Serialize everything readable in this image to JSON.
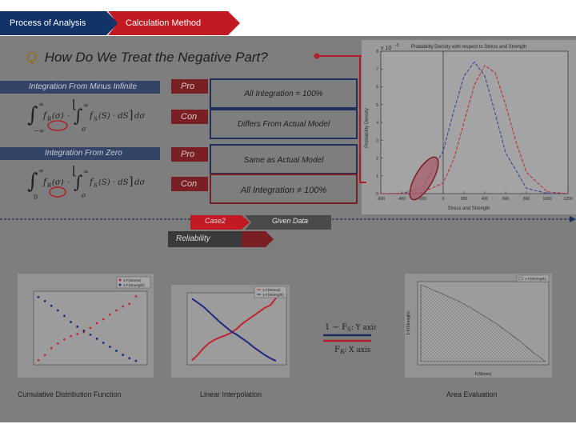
{
  "header": {
    "tab_process": "Process of Analysis",
    "tab_method": "Calculation Method"
  },
  "question": {
    "marker": "Q.",
    "text": "How Do We Treat the Negative Part?"
  },
  "methods": [
    {
      "label": "Integration From Minus Infinite",
      "pro": "Pro",
      "pro_text": "All Integration = 100%",
      "con": "Con",
      "con_text": "Differs From Actual Model"
    },
    {
      "label": "Integration From Zero",
      "pro": "Pro",
      "pro_text": "Same as Actual Model",
      "con": "Con",
      "con_text": "All Integration ≠ 100%"
    }
  ],
  "formulas": {
    "upper_limit": "∞",
    "lower_limit_1": "−∞",
    "lower_limit_2": "0",
    "inner_lower": "σ",
    "fr": "f",
    "fr_sub": "R",
    "fs": "f",
    "fs_sub": "S",
    "arg_sigma": "(σ)",
    "inner_body": "(S) · dS",
    "dsigma": "dσ",
    "dot": "·"
  },
  "plot": {
    "title": "Probability Density with respect to Stress and Strength",
    "xlabel": "Stress and Strength",
    "ylabel": "Probability Density",
    "exponent": "x 10",
    "exponent_power": "-3",
    "ytick_labels": [
      "0",
      "1",
      "2",
      "3",
      "4",
      "5",
      "6",
      "7",
      "8"
    ],
    "xtick_labels": [
      "-600",
      "-400",
      "-200",
      "0",
      "200",
      "400",
      "600",
      "800",
      "1000",
      "1200"
    ],
    "stress_color": "#2e3f9e",
    "strength_color": "#c0252b"
  },
  "process": {
    "case_label": "Case2",
    "given_label": "Given Data",
    "reliability_label": "Reliability"
  },
  "charts": {
    "cdf_caption": "Cumulative Distribution Function",
    "interp_caption": "Linear Interpolation",
    "area_caption": "Area Evaluation",
    "legend_a": "1-F(Stress)",
    "legend_b": "1-F(Strength)",
    "legend_area": "1-F(Strength)",
    "area_ylabel": "1-F(Strength)",
    "area_xlabel": "F(Stress)",
    "legend_1_fs": "1 − F",
    "legend_1_fs_sub": "S",
    "legend_1_fs_suffix": ": Y axis",
    "legend_fr": "F",
    "legend_fr_sub": "R",
    "legend_fr_suffix": ": X axis"
  },
  "chart_data": [
    {
      "type": "line",
      "title": "Probability Density with respect to Stress and Strength",
      "xlabel": "Stress and Strength",
      "ylabel": "Probability Density",
      "xlim": [
        -600,
        1200
      ],
      "ylim": [
        0,
        8
      ],
      "y_multiplier": "x 10^-3",
      "series": [
        {
          "color": "#2e3f9e",
          "style": "dashed",
          "x": [
            -600,
            -400,
            -200,
            0,
            100,
            200,
            300,
            400,
            500,
            600,
            800,
            1000,
            1200
          ],
          "y": [
            0,
            0.01,
            0.3,
            2.4,
            4.6,
            6.6,
            7.4,
            6.6,
            4.5,
            2.3,
            0.3,
            0.01,
            0
          ]
        },
        {
          "color": "#c0252b",
          "style": "dashed",
          "x": [
            -600,
            -400,
            -200,
            0,
            100,
            200,
            300,
            400,
            500,
            600,
            700,
            800,
            1000,
            1200
          ],
          "y": [
            0,
            0,
            0.05,
            0.6,
            1.9,
            4.0,
            6.1,
            7.2,
            6.8,
            5.0,
            2.9,
            1.2,
            0.1,
            0
          ]
        }
      ]
    },
    {
      "type": "scatter",
      "series": [
        {
          "color": "#c0252b",
          "x": [
            0,
            50,
            100,
            150,
            200,
            250,
            300,
            350,
            400,
            450,
            500,
            550,
            600,
            650,
            700,
            750
          ],
          "y": [
            0.02,
            0.1,
            0.2,
            0.27,
            0.33,
            0.38,
            0.41,
            0.44,
            0.5,
            0.57,
            0.63,
            0.7,
            0.76,
            0.82,
            0.86,
            0.97
          ]
        },
        {
          "color": "#1d2a80",
          "x": [
            0,
            50,
            100,
            150,
            200,
            250,
            300,
            350,
            400,
            450,
            500,
            550,
            600,
            650,
            700,
            750
          ],
          "y": [
            0.96,
            0.9,
            0.83,
            0.76,
            0.68,
            0.59,
            0.52,
            0.46,
            0.4,
            0.34,
            0.28,
            0.22,
            0.16,
            0.1,
            0.05,
            0.01
          ]
        }
      ]
    },
    {
      "type": "line",
      "series": [
        {
          "color": "#c0252b",
          "x": [
            0,
            50,
            100,
            150,
            200,
            250,
            300,
            350,
            400,
            450,
            500,
            550,
            600,
            650,
            700,
            750
          ],
          "y": [
            0.02,
            0.1,
            0.2,
            0.28,
            0.33,
            0.37,
            0.4,
            0.44,
            0.5,
            0.58,
            0.64,
            0.7,
            0.76,
            0.82,
            0.86,
            0.97
          ]
        },
        {
          "color": "#1d2a80",
          "x": [
            0,
            50,
            100,
            150,
            200,
            250,
            300,
            350,
            400,
            450,
            500,
            550,
            600,
            650,
            700,
            750
          ],
          "y": [
            0.96,
            0.9,
            0.84,
            0.76,
            0.68,
            0.6,
            0.53,
            0.46,
            0.41,
            0.35,
            0.29,
            0.22,
            0.16,
            0.1,
            0.05,
            0.01
          ]
        }
      ]
    },
    {
      "type": "area",
      "xlabel": "F(Stress)",
      "ylabel": "1-F(Strength)",
      "xlim": [
        0,
        1
      ],
      "ylim": [
        0,
        1
      ],
      "x": [
        0,
        0.05,
        0.1,
        0.15,
        0.2,
        0.3,
        0.4,
        0.5,
        0.6,
        0.7,
        0.8,
        0.9,
        1
      ],
      "y": [
        1,
        0.97,
        0.93,
        0.9,
        0.86,
        0.79,
        0.7,
        0.6,
        0.5,
        0.38,
        0.26,
        0.12,
        0
      ]
    }
  ]
}
